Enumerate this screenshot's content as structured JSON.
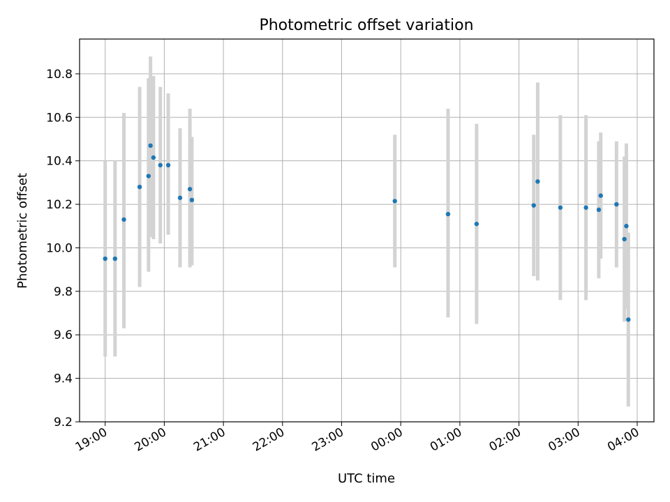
{
  "chart_data": {
    "type": "scatter",
    "title": "Photometric offset variation",
    "xlabel": "UTC time",
    "ylabel": "Photometric offset",
    "grid": true,
    "x_unit": "hours",
    "xlim": [
      "18:34",
      "04:17"
    ],
    "ylim": [
      9.2,
      10.96
    ],
    "x_ticks": [
      "19:00",
      "20:00",
      "21:00",
      "22:00",
      "23:00",
      "00:00",
      "01:00",
      "02:00",
      "03:00",
      "04:00"
    ],
    "y_ticks": [
      "9.2",
      "9.4",
      "9.6",
      "9.8",
      "10.0",
      "10.2",
      "10.4",
      "10.6",
      "10.8"
    ],
    "point_color": "#1f77b4",
    "errorbar_color": "#d3d3d3",
    "points": [
      {
        "t": "19:00",
        "y": 9.95,
        "lo": 9.5,
        "hi": 10.4
      },
      {
        "t": "19:10",
        "y": 9.95,
        "lo": 9.5,
        "hi": 10.4
      },
      {
        "t": "19:19",
        "y": 10.13,
        "lo": 9.63,
        "hi": 10.62
      },
      {
        "t": "19:35",
        "y": 10.28,
        "lo": 9.82,
        "hi": 10.74
      },
      {
        "t": "19:44",
        "y": 10.33,
        "lo": 9.89,
        "hi": 10.78
      },
      {
        "t": "19:46",
        "y": 10.47,
        "lo": 10.05,
        "hi": 10.88
      },
      {
        "t": "19:49",
        "y": 10.415,
        "lo": 10.04,
        "hi": 10.79
      },
      {
        "t": "19:56",
        "y": 10.38,
        "lo": 10.02,
        "hi": 10.74
      },
      {
        "t": "20:04",
        "y": 10.38,
        "lo": 10.06,
        "hi": 10.71
      },
      {
        "t": "20:16",
        "y": 10.23,
        "lo": 9.91,
        "hi": 10.55
      },
      {
        "t": "20:26",
        "y": 10.27,
        "lo": 9.91,
        "hi": 10.64
      },
      {
        "t": "20:28",
        "y": 10.22,
        "lo": 9.92,
        "hi": 10.51
      },
      {
        "t": "23:54",
        "y": 10.215,
        "lo": 9.91,
        "hi": 10.52
      },
      {
        "t": "00:48",
        "y": 10.155,
        "lo": 9.68,
        "hi": 10.64
      },
      {
        "t": "01:17",
        "y": 10.11,
        "lo": 9.65,
        "hi": 10.57
      },
      {
        "t": "02:15",
        "y": 10.195,
        "lo": 9.87,
        "hi": 10.52
      },
      {
        "t": "02:19",
        "y": 10.305,
        "lo": 9.85,
        "hi": 10.76
      },
      {
        "t": "02:42",
        "y": 10.185,
        "lo": 9.76,
        "hi": 10.61
      },
      {
        "t": "03:08",
        "y": 10.185,
        "lo": 9.76,
        "hi": 10.61
      },
      {
        "t": "03:21",
        "y": 10.175,
        "lo": 9.86,
        "hi": 10.49
      },
      {
        "t": "03:23",
        "y": 10.24,
        "lo": 9.95,
        "hi": 10.53
      },
      {
        "t": "03:39",
        "y": 10.2,
        "lo": 9.91,
        "hi": 10.49
      },
      {
        "t": "03:47",
        "y": 10.04,
        "lo": 9.66,
        "hi": 10.42
      },
      {
        "t": "03:49",
        "y": 10.1,
        "lo": 9.72,
        "hi": 10.48
      },
      {
        "t": "03:51",
        "y": 9.67,
        "lo": 9.27,
        "hi": 10.07
      }
    ]
  }
}
